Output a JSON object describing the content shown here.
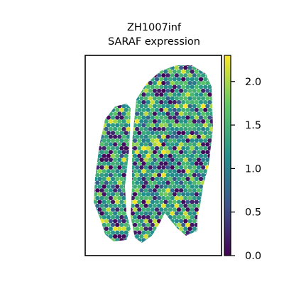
{
  "chart_data": {
    "type": "scatter",
    "subtype": "spatial-hexbin",
    "title": "ZH1007inf",
    "subtitle": "SARAF expression",
    "xlabel": "",
    "ylabel": "",
    "grid": false,
    "legend": "none",
    "colorbar": {
      "colormap": "viridis",
      "range": [
        0.0,
        2.3
      ],
      "ticks": [
        {
          "value": 0.0,
          "label": "0.0"
        },
        {
          "value": 0.5,
          "label": "0.5"
        },
        {
          "value": 1.0,
          "label": "1.0"
        },
        {
          "value": 1.5,
          "label": "1.5"
        },
        {
          "value": 2.0,
          "label": "2.0"
        }
      ],
      "placement": "right"
    },
    "colors": [
      "#440154",
      "#3b528b",
      "#21918c",
      "#5ec962",
      "#fde725"
    ]
  }
}
